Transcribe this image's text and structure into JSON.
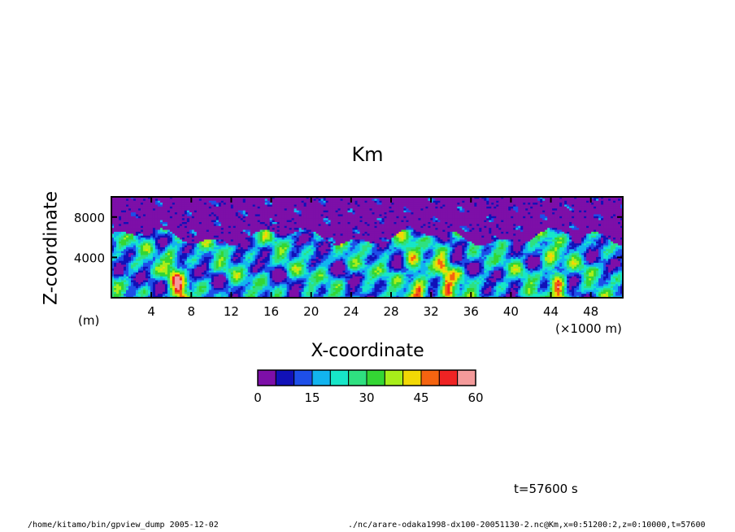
{
  "chart_data": {
    "type": "heatmap",
    "title": "Km",
    "xlabel": "X-coordinate",
    "ylabel": "Z-coordinate",
    "x_unit_label": "(×1000 m)",
    "y_unit_label": "(m)",
    "xlim": [
      0,
      51.2
    ],
    "ylim": [
      0,
      10000
    ],
    "x_ticks": [
      4,
      8,
      12,
      16,
      20,
      24,
      28,
      32,
      36,
      40,
      44,
      48
    ],
    "x_tick_labels": [
      "4",
      "8",
      "12",
      "16",
      "20",
      "24",
      "28",
      "32",
      "36",
      "40",
      "44",
      "48"
    ],
    "y_ticks": [
      4000,
      8000
    ],
    "y_tick_labels": [
      "4000",
      "8000"
    ],
    "colorbar": {
      "levels": [
        0,
        5,
        10,
        15,
        20,
        25,
        30,
        35,
        40,
        45,
        50,
        55,
        60
      ],
      "labels": [
        "0",
        "15",
        "30",
        "45",
        "60"
      ],
      "label_values": [
        0,
        15,
        30,
        45,
        60
      ],
      "colors": [
        "#7d0fa8",
        "#1111b8",
        "#1e4fe8",
        "#12b4ef",
        "#17e6c8",
        "#2fe080",
        "#34d634",
        "#a8ee1a",
        "#f2d805",
        "#f56410",
        "#ef2323",
        "#f49a9a"
      ]
    },
    "annotations": [
      "t=57600 s"
    ]
  },
  "footer": {
    "left": "/home/kitamo/bin/gpview_dump   2005-12-02",
    "right": "./nc/arare-odaka1998-dx100-20051130-2.nc@Km,x=0:51200:2,z=0:10000,t=57600"
  }
}
